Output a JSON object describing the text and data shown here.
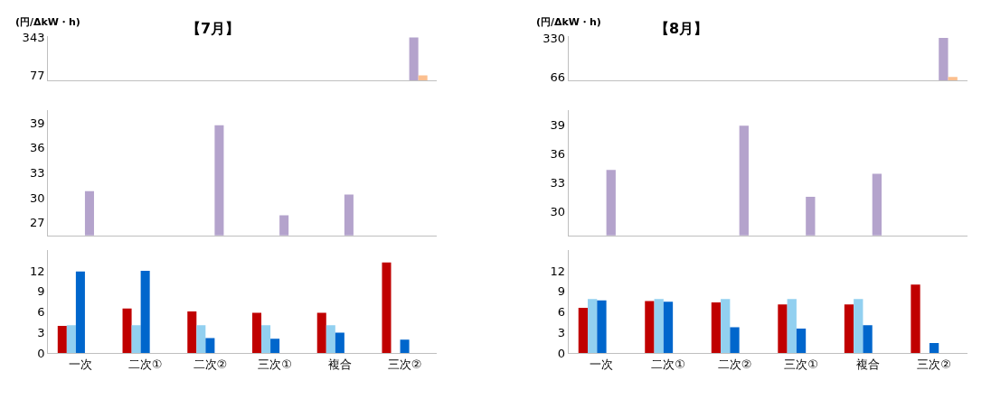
{
  "chart_data": [
    {
      "type": "bar",
      "title": "【7月】",
      "ylabel": "(円/ΔkW・h)",
      "categories": [
        null,
        null,
        null,
        null,
        null,
        null
      ],
      "tick_labels": "y",
      "ylim": [
        40,
        350
      ],
      "yticks": [
        77,
        343
      ],
      "series": [
        {
          "color": "#c00000",
          "values": [
            null,
            null,
            null,
            null,
            null,
            null
          ]
        },
        {
          "color": "#92d0f0",
          "values": [
            null,
            null,
            null,
            null,
            null,
            null
          ]
        },
        {
          "color": "#0066cc",
          "values": [
            null,
            null,
            null,
            null,
            null,
            null
          ]
        },
        {
          "color": "#b4a3cc",
          "values": [
            null,
            null,
            null,
            null,
            null,
            343
          ]
        },
        {
          "color": "#fbbf8f",
          "values": [
            null,
            null,
            null,
            null,
            null,
            77
          ]
        }
      ]
    },
    {
      "type": "bar",
      "categories": [
        null,
        null,
        null,
        null,
        null,
        null
      ],
      "tick_labels": "y",
      "ylim": [
        25.5,
        40.5
      ],
      "yticks": [
        27,
        30,
        33,
        36,
        39
      ],
      "series": [
        {
          "color": "#c00000",
          "values": [
            null,
            null,
            null,
            null,
            null,
            null
          ]
        },
        {
          "color": "#92d0f0",
          "values": [
            null,
            null,
            null,
            null,
            null,
            null
          ]
        },
        {
          "color": "#0066cc",
          "values": [
            null,
            null,
            null,
            null,
            null,
            null
          ]
        },
        {
          "color": "#b4a3cc",
          "values": [
            30.8,
            null,
            38.7,
            27.9,
            30.4,
            null
          ]
        },
        {
          "color": "#fbbf8f",
          "values": [
            null,
            null,
            null,
            null,
            null,
            null
          ]
        }
      ]
    },
    {
      "type": "bar",
      "categories": [
        "一次",
        "二次①",
        "二次②",
        "三次①",
        "複合",
        "三次②"
      ],
      "ylim": [
        0,
        15
      ],
      "yticks": [
        0,
        3,
        6,
        9,
        12
      ],
      "series": [
        {
          "color": "#c00000",
          "values": [
            4.0,
            6.5,
            6.1,
            5.9,
            5.9,
            13.2
          ]
        },
        {
          "color": "#92d0f0",
          "values": [
            4.1,
            4.1,
            4.1,
            4.1,
            4.1,
            null
          ]
        },
        {
          "color": "#0066cc",
          "values": [
            11.9,
            12.0,
            2.2,
            2.1,
            3.0,
            2.0
          ]
        },
        {
          "color": "#b4a3cc",
          "values": [
            null,
            null,
            null,
            null,
            null,
            null
          ]
        },
        {
          "color": "#fbbf8f",
          "values": [
            null,
            null,
            null,
            null,
            null,
            null
          ]
        }
      ]
    },
    {
      "type": "bar",
      "title": "【8月】",
      "ylabel": "(円/ΔkW・h)",
      "categories": [
        null,
        null,
        null,
        null,
        null,
        null
      ],
      "tick_labels": "y",
      "ylim": [
        40,
        340
      ],
      "yticks": [
        66,
        330
      ],
      "series": [
        {
          "color": "#c00000",
          "values": [
            null,
            null,
            null,
            null,
            null,
            null
          ]
        },
        {
          "color": "#92d0f0",
          "values": [
            null,
            null,
            null,
            null,
            null,
            null
          ]
        },
        {
          "color": "#0066cc",
          "values": [
            null,
            null,
            null,
            null,
            null,
            null
          ]
        },
        {
          "color": "#b4a3cc",
          "values": [
            null,
            null,
            null,
            null,
            null,
            330
          ]
        },
        {
          "color": "#fbbf8f",
          "values": [
            null,
            null,
            null,
            null,
            null,
            66
          ]
        }
      ]
    },
    {
      "type": "bar",
      "categories": [
        null,
        null,
        null,
        null,
        null,
        null
      ],
      "tick_labels": "y",
      "ylim": [
        27.5,
        40.5
      ],
      "yticks": [
        30,
        33,
        36,
        39
      ],
      "series": [
        {
          "color": "#c00000",
          "values": [
            null,
            null,
            null,
            null,
            null,
            null
          ]
        },
        {
          "color": "#92d0f0",
          "values": [
            null,
            null,
            null,
            null,
            null,
            null
          ]
        },
        {
          "color": "#0066cc",
          "values": [
            null,
            null,
            null,
            null,
            null,
            null
          ]
        },
        {
          "color": "#b4a3cc",
          "values": [
            34.3,
            null,
            38.9,
            31.5,
            33.9,
            null
          ]
        },
        {
          "color": "#fbbf8f",
          "values": [
            null,
            null,
            null,
            null,
            null,
            null
          ]
        }
      ]
    },
    {
      "type": "bar",
      "categories": [
        "一次",
        "二次①",
        "二次②",
        "三次①",
        "複合",
        "三次②"
      ],
      "ylim": [
        0,
        15
      ],
      "yticks": [
        0,
        3,
        6,
        9,
        12
      ],
      "series": [
        {
          "color": "#c00000",
          "values": [
            6.6,
            7.6,
            7.4,
            7.1,
            7.1,
            10.0
          ]
        },
        {
          "color": "#92d0f0",
          "values": [
            7.9,
            7.9,
            7.9,
            7.9,
            7.9,
            null
          ]
        },
        {
          "color": "#0066cc",
          "values": [
            7.7,
            7.5,
            3.8,
            3.6,
            4.1,
            1.5
          ]
        },
        {
          "color": "#b4a3cc",
          "values": [
            null,
            null,
            null,
            null,
            null,
            null
          ]
        },
        {
          "color": "#fbbf8f",
          "values": [
            null,
            null,
            null,
            null,
            null,
            null
          ]
        }
      ]
    }
  ]
}
